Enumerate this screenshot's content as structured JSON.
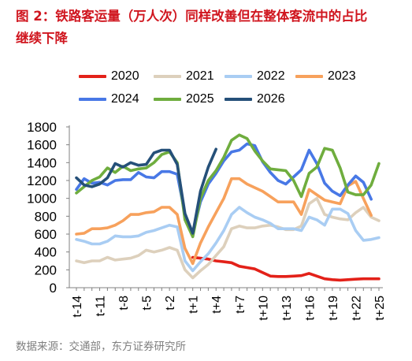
{
  "chart_data": {
    "type": "line",
    "title": [
      "图 2：铁路客运量（万人次）同样改善但在整体客流中的占比",
      "继续下降"
    ],
    "x": [
      -14,
      -13,
      -12,
      -11,
      -10,
      -9,
      -8,
      -7,
      -6,
      -5,
      -4,
      -3,
      -2,
      -1,
      0,
      1,
      2,
      3,
      4,
      5,
      6,
      7,
      8,
      9,
      10,
      11,
      12,
      13,
      14,
      15,
      16,
      17,
      18,
      19,
      20,
      21,
      22,
      23,
      24,
      25
    ],
    "xticks": [
      -14,
      -11,
      -8,
      -5,
      -2,
      1,
      4,
      7,
      10,
      13,
      16,
      19,
      22,
      25
    ],
    "xtick_labels": [
      "t-14",
      "t-11",
      "t-8",
      "t-5",
      "t-2",
      "t+1",
      "t+4",
      "t+7",
      "t+10",
      "t+13",
      "t+16",
      "t+19",
      "t+22",
      "t+25"
    ],
    "ylim": [
      0,
      1800
    ],
    "yticks": [
      0,
      200,
      400,
      600,
      800,
      1000,
      1200,
      1400,
      1600,
      1800
    ],
    "grid": false,
    "legend_position": "top",
    "series": [
      {
        "name": "2020",
        "color": "#e32119",
        "values": [
          null,
          null,
          null,
          null,
          null,
          null,
          null,
          null,
          null,
          null,
          null,
          null,
          null,
          null,
          null,
          340,
          330,
          320,
          300,
          290,
          280,
          240,
          225,
          210,
          170,
          130,
          125,
          125,
          130,
          135,
          160,
          130,
          100,
          90,
          85,
          90,
          95,
          100,
          100,
          100
        ]
      },
      {
        "name": "2021",
        "color": "#ddd0bc",
        "values": [
          300,
          280,
          300,
          300,
          340,
          310,
          320,
          330,
          360,
          420,
          400,
          420,
          450,
          420,
          200,
          110,
          190,
          260,
          360,
          460,
          660,
          690,
          670,
          670,
          690,
          700,
          680,
          650,
          650,
          690,
          940,
          1000,
          820,
          790,
          770,
          760,
          840,
          900,
          790,
          750
        ]
      },
      {
        "name": "2022",
        "color": "#a9cdf3",
        "values": [
          540,
          520,
          490,
          490,
          520,
          580,
          570,
          570,
          580,
          620,
          640,
          670,
          700,
          680,
          300,
          190,
          290,
          380,
          500,
          640,
          820,
          900,
          840,
          790,
          760,
          720,
          660,
          660,
          660,
          640,
          790,
          760,
          700,
          880,
          880,
          830,
          640,
          530,
          540,
          560
        ]
      },
      {
        "name": "2023",
        "color": "#f7a15c",
        "values": [
          600,
          610,
          660,
          660,
          670,
          700,
          750,
          820,
          820,
          840,
          850,
          900,
          900,
          820,
          440,
          270,
          500,
          680,
          840,
          1000,
          1220,
          1220,
          1160,
          1120,
          1080,
          1020,
          960,
          960,
          960,
          820,
          1100,
          1040,
          980,
          960,
          940,
          1140,
          1190,
          1000,
          810,
          null
        ]
      },
      {
        "name": "2024",
        "color": "#4878e6",
        "values": [
          1100,
          1220,
          1170,
          1180,
          1150,
          1200,
          1210,
          1210,
          1290,
          1240,
          1230,
          1300,
          1300,
          1270,
          820,
          610,
          960,
          1160,
          1280,
          1420,
          1520,
          1540,
          1610,
          1590,
          1410,
          1290,
          1200,
          1160,
          1240,
          1320,
          1540,
          1390,
          1170,
          1080,
          1030,
          1150,
          1250,
          1180,
          990,
          null
        ]
      },
      {
        "name": "2025",
        "color": "#6fad3e",
        "values": [
          1060,
          1130,
          1200,
          1240,
          1340,
          1290,
          1360,
          1310,
          1330,
          1340,
          1400,
          1490,
          1520,
          1400,
          760,
          570,
          1000,
          1200,
          1310,
          1460,
          1650,
          1710,
          1670,
          1530,
          1420,
          1330,
          1320,
          1310,
          1200,
          1020,
          1280,
          1350,
          1560,
          1540,
          1340,
          1070,
          1040,
          1040,
          1150,
          1390
        ]
      },
      {
        "name": "2026",
        "color": "#255079",
        "values": [
          1230,
          1150,
          1130,
          1160,
          1230,
          1390,
          1350,
          1400,
          1370,
          1380,
          1510,
          1540,
          1540,
          1380,
          830,
          610,
          1080,
          1350,
          1550,
          null,
          null,
          null,
          null,
          null,
          null,
          null,
          null,
          null,
          null,
          null,
          null,
          null,
          null,
          null,
          null,
          null,
          null,
          null,
          null,
          null
        ]
      }
    ],
    "source": "数据来源：交通部，东方证券研究所"
  }
}
